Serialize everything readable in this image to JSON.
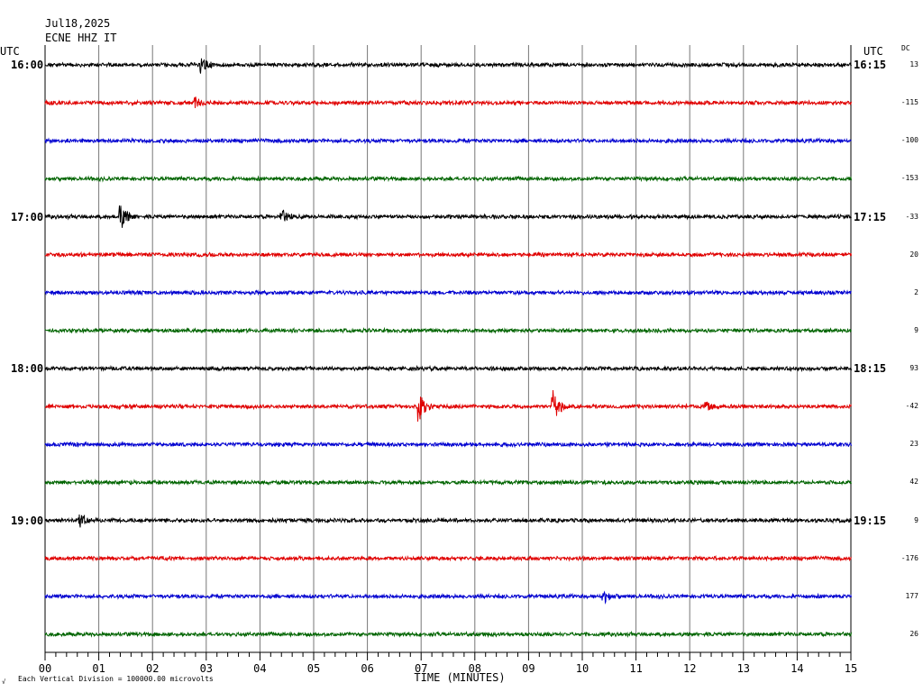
{
  "header": {
    "date": "Jul18,2025",
    "station": "ECNE HHZ IT",
    "utc_left": "UTC",
    "utc_right": "UTC",
    "dc_label": "DC"
  },
  "footer": {
    "note": "Each Vertical Division = 100000.00 microvolts",
    "mark": "√"
  },
  "colors": [
    "#000000",
    "#e00000",
    "#0000d0",
    "#006400"
  ],
  "chart_data": {
    "type": "line",
    "xlabel": "TIME (MINUTES)",
    "x_ticks": [
      "00",
      "01",
      "02",
      "03",
      "04",
      "05",
      "06",
      "07",
      "08",
      "09",
      "10",
      "11",
      "12",
      "13",
      "14",
      "15"
    ],
    "xlim": [
      0,
      15
    ],
    "grid": true,
    "hour_labels_left": [
      {
        "row": 0,
        "label": "16:00"
      },
      {
        "row": 4,
        "label": "17:00"
      },
      {
        "row": 8,
        "label": "18:00"
      },
      {
        "row": 12,
        "label": "19:00"
      }
    ],
    "hour_labels_right": [
      {
        "row": 0,
        "label": "16:15"
      },
      {
        "row": 4,
        "label": "17:15"
      },
      {
        "row": 8,
        "label": "18:15"
      },
      {
        "row": 12,
        "label": "19:15"
      }
    ],
    "dc_offsets": [
      "13",
      "-115",
      "-100",
      "-153",
      "-33",
      "20",
      "2",
      "9",
      "93",
      "-42",
      "23",
      "42",
      "9",
      "-176",
      "177",
      "26"
    ],
    "events": [
      {
        "row": 0,
        "minute": 2.9,
        "amp": 10
      },
      {
        "row": 1,
        "minute": 2.8,
        "amp": 5
      },
      {
        "row": 4,
        "minute": 1.4,
        "amp": 14
      },
      {
        "row": 4,
        "minute": 4.4,
        "amp": 7
      },
      {
        "row": 9,
        "minute": 6.95,
        "amp": 18
      },
      {
        "row": 9,
        "minute": 9.45,
        "amp": 18
      },
      {
        "row": 9,
        "minute": 12.3,
        "amp": 5
      },
      {
        "row": 12,
        "minute": 0.65,
        "amp": 8
      },
      {
        "row": 14,
        "minute": 10.4,
        "amp": 7
      }
    ]
  }
}
